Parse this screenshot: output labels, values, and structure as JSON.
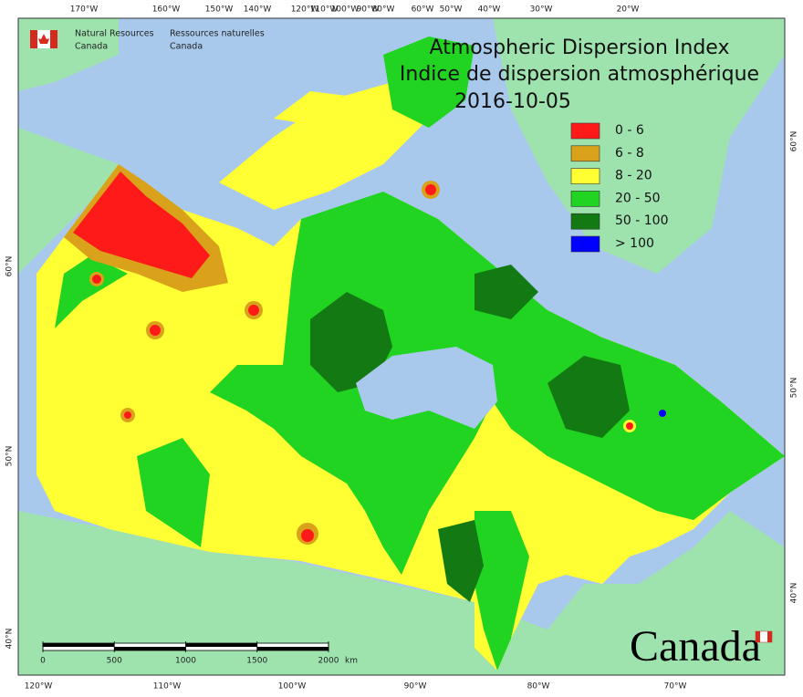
{
  "header": {
    "agency_en": [
      "Natural Resources",
      "Canada"
    ],
    "agency_fr": [
      "Ressources naturelles",
      "Canada"
    ]
  },
  "title": {
    "line1": "Atmospheric Dispersion Index",
    "line2": "Indice de dispersion atmosphérique",
    "date": "2016-10-05"
  },
  "legend": [
    {
      "label": "0 - 6",
      "color": "#ff1a1a"
    },
    {
      "label": "6 - 8",
      "color": "#d9a21a"
    },
    {
      "label": "8 - 20",
      "color": "#ffff33"
    },
    {
      "label": "20 - 50",
      "color": "#22d422"
    },
    {
      "label": "50 - 100",
      "color": "#137a13"
    },
    {
      "label": "> 100",
      "color": "#0000ff"
    }
  ],
  "top_axis": [
    "170°W",
    "160°W",
    "150°W",
    "140°W",
    "120°W",
    "110°W",
    "100°W",
    "90°W",
    "80°W",
    "60°W",
    "50°W",
    "40°W",
    "30°W",
    "20°W"
  ],
  "bottom_axis": [
    "120°W",
    "110°W",
    "100°W",
    "90°W",
    "80°W",
    "70°W"
  ],
  "left_axis": [
    "60°N",
    "50°N",
    "40°N"
  ],
  "right_axis": [
    "60°N",
    "50°N",
    "40°N"
  ],
  "scale_bar": {
    "ticks": [
      0,
      500,
      1000,
      1500,
      2000
    ],
    "unit": "km"
  },
  "wordmark": "Canada"
}
